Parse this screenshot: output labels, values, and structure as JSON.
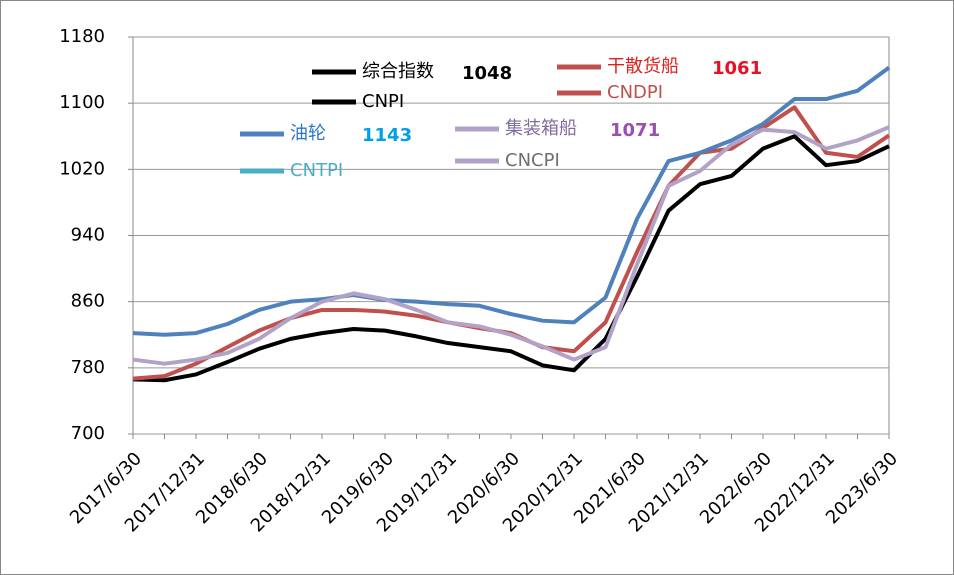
{
  "chart_data": {
    "type": "line",
    "categories": [
      "2017/6/30",
      null,
      "2017/12/31",
      null,
      "2018/6/30",
      null,
      "2018/12/31",
      null,
      "2019/6/30",
      null,
      "2019/12/31",
      null,
      "2020/6/30",
      null,
      "2020/12/31",
      null,
      "2021/6/30",
      null,
      "2021/12/31",
      null,
      "2022/6/30",
      null,
      "2022/12/31",
      null,
      "2023/6/30"
    ],
    "ylim": [
      700,
      1180
    ],
    "yticks": [
      700,
      780,
      860,
      940,
      1020,
      1100,
      1180
    ],
    "series": [
      {
        "name": "综合指数",
        "name_en": "CNPI",
        "color": "#000000",
        "text_color": "#000000",
        "en_color": "#000000",
        "en_swatch": "#000000",
        "label_color": "#000000",
        "values": [
          766,
          765,
          772,
          787,
          803,
          815,
          822,
          827,
          825,
          818,
          810,
          805,
          800,
          783,
          777,
          815,
          890,
          970,
          1002,
          1012,
          1045,
          1060,
          1025,
          1030,
          1048
        ],
        "value_labels": [
          null,
          null,
          null,
          null,
          null,
          null,
          null,
          null,
          null,
          null,
          null,
          null,
          null,
          null,
          null,
          null,
          null,
          null,
          null,
          null,
          null,
          null,
          null,
          null,
          "1048"
        ]
      },
      {
        "name": "干散货船",
        "name_en": "CNDPI",
        "color": "#c0504d",
        "text_color": "#e0201a",
        "en_color": "#c0504d",
        "en_swatch": "#c0504d",
        "label_color": "#e81123",
        "values": [
          767,
          770,
          785,
          805,
          825,
          840,
          850,
          850,
          848,
          843,
          835,
          828,
          822,
          805,
          800,
          835,
          920,
          1000,
          1040,
          1045,
          1070,
          1095,
          1040,
          1035,
          1061
        ],
        "value_labels": [
          null,
          null,
          null,
          null,
          null,
          null,
          null,
          null,
          null,
          null,
          null,
          null,
          null,
          null,
          null,
          null,
          null,
          null,
          null,
          null,
          null,
          null,
          null,
          null,
          "1061"
        ]
      },
      {
        "name": "油轮",
        "name_en": "CNTPI",
        "color": "#4f81bd",
        "text_color": "#2e75c8",
        "en_color": "#4bacc6",
        "en_swatch": "#4bacc6",
        "label_color": "#00a0e9",
        "values": [
          822,
          820,
          822,
          833,
          850,
          860,
          863,
          868,
          862,
          860,
          857,
          855,
          845,
          837,
          835,
          865,
          960,
          1030,
          1040,
          1055,
          1075,
          1105,
          1105,
          1115,
          1143
        ],
        "value_labels": [
          null,
          null,
          null,
          null,
          null,
          null,
          null,
          null,
          null,
          null,
          null,
          null,
          null,
          null,
          null,
          null,
          null,
          null,
          null,
          null,
          null,
          null,
          null,
          null,
          "1143"
        ]
      },
      {
        "name": "集装箱船",
        "name_en": "CNCPI",
        "color": "#b3a2c7",
        "text_color": "#7f6f9f",
        "en_color": "#6f6f6f",
        "en_swatch": "#b3a2c7",
        "label_color": "#9b4fb0",
        "values": [
          790,
          785,
          790,
          798,
          815,
          840,
          860,
          870,
          863,
          850,
          835,
          830,
          820,
          806,
          790,
          805,
          905,
          1000,
          1018,
          1050,
          1068,
          1065,
          1045,
          1055,
          1071
        ],
        "value_labels": [
          null,
          null,
          null,
          null,
          null,
          null,
          null,
          null,
          null,
          null,
          null,
          null,
          null,
          null,
          null,
          null,
          null,
          null,
          null,
          null,
          null,
          null,
          null,
          null,
          "1071"
        ]
      }
    ]
  }
}
